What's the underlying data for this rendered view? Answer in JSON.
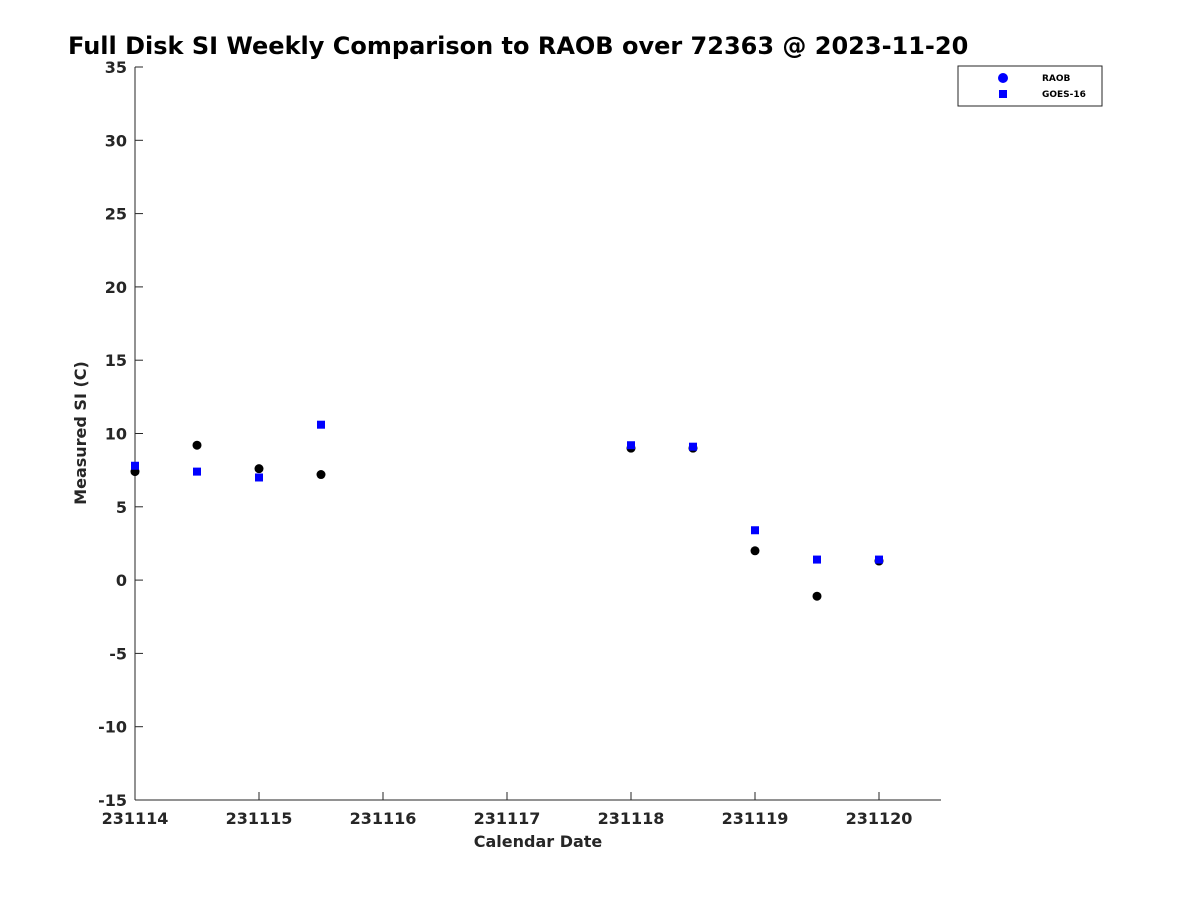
{
  "chart_data": {
    "type": "scatter",
    "title": "Full Disk SI Weekly Comparison to RAOB over 72363 @ 2023-11-20",
    "xlabel": "Calendar Date",
    "ylabel": "Measured SI (C)",
    "xlim": [
      231114,
      231120.5
    ],
    "ylim": [
      -15,
      35
    ],
    "x_ticks": [
      231114,
      231115,
      231116,
      231117,
      231118,
      231119,
      231120
    ],
    "x_tick_labels": [
      "231114",
      "231115",
      "231116",
      "231117",
      "231118",
      "231119",
      "231120"
    ],
    "y_ticks": [
      -15,
      -10,
      -5,
      0,
      5,
      10,
      15,
      20,
      25,
      30,
      35
    ],
    "y_tick_labels": [
      "-15",
      "-10",
      "-5",
      "0",
      "5",
      "10",
      "15",
      "20",
      "25",
      "30",
      "35"
    ],
    "grid": false,
    "legend_position": "top-right",
    "legend": [
      {
        "label": "RAOB",
        "marker": "circle",
        "color": "#0000ff"
      },
      {
        "label": "GOES-16",
        "marker": "square",
        "color": "#0000ff"
      }
    ],
    "series": [
      {
        "name": "RAOB",
        "marker": "circle",
        "color": "#000000",
        "x": [
          231114,
          231114.5,
          231115,
          231115.5,
          231118,
          231118.5,
          231119,
          231119.5,
          231120
        ],
        "y": [
          7.4,
          9.2,
          7.6,
          7.2,
          9.0,
          9.0,
          2.0,
          -1.1,
          1.3
        ]
      },
      {
        "name": "GOES-16",
        "marker": "square",
        "color": "#0000ff",
        "x": [
          231114,
          231114.5,
          231115,
          231115.5,
          231118,
          231118.5,
          231119,
          231119.5,
          231120
        ],
        "y": [
          7.8,
          7.4,
          7.0,
          10.6,
          9.2,
          9.1,
          3.4,
          1.4,
          1.4
        ]
      }
    ]
  }
}
